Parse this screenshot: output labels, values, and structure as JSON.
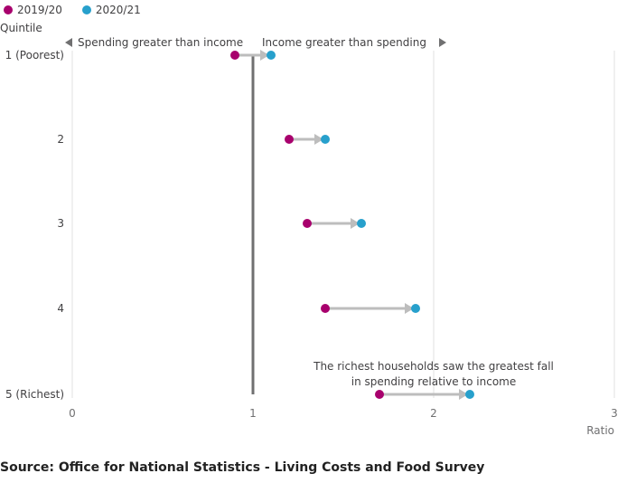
{
  "chart_data": {
    "type": "dumbbell",
    "ylabel": "Quintile",
    "xlabel": "Ratio",
    "xlim": [
      0,
      3
    ],
    "xticks": [
      "0",
      "1",
      "2",
      "3"
    ],
    "grid": true,
    "reference_line": 1,
    "left_note": "Spending greater than income",
    "right_note": "Income greater than spending",
    "annotation": [
      "The richest households saw the greatest fall",
      "in spending relative to income"
    ],
    "categories": [
      "1 (Poorest)",
      "2",
      "3",
      "4",
      "5 (Richest)"
    ],
    "series": [
      {
        "name": "2019/20",
        "color": "#a8006d",
        "values": [
          0.9,
          1.2,
          1.3,
          1.4,
          1.7
        ]
      },
      {
        "name": "2020/21",
        "color": "#27a0cc",
        "values": [
          1.1,
          1.4,
          1.6,
          1.9,
          2.2
        ]
      }
    ],
    "legend": "top-left"
  },
  "source": "Source: Office for National Statistics - Living Costs and Food Survey"
}
